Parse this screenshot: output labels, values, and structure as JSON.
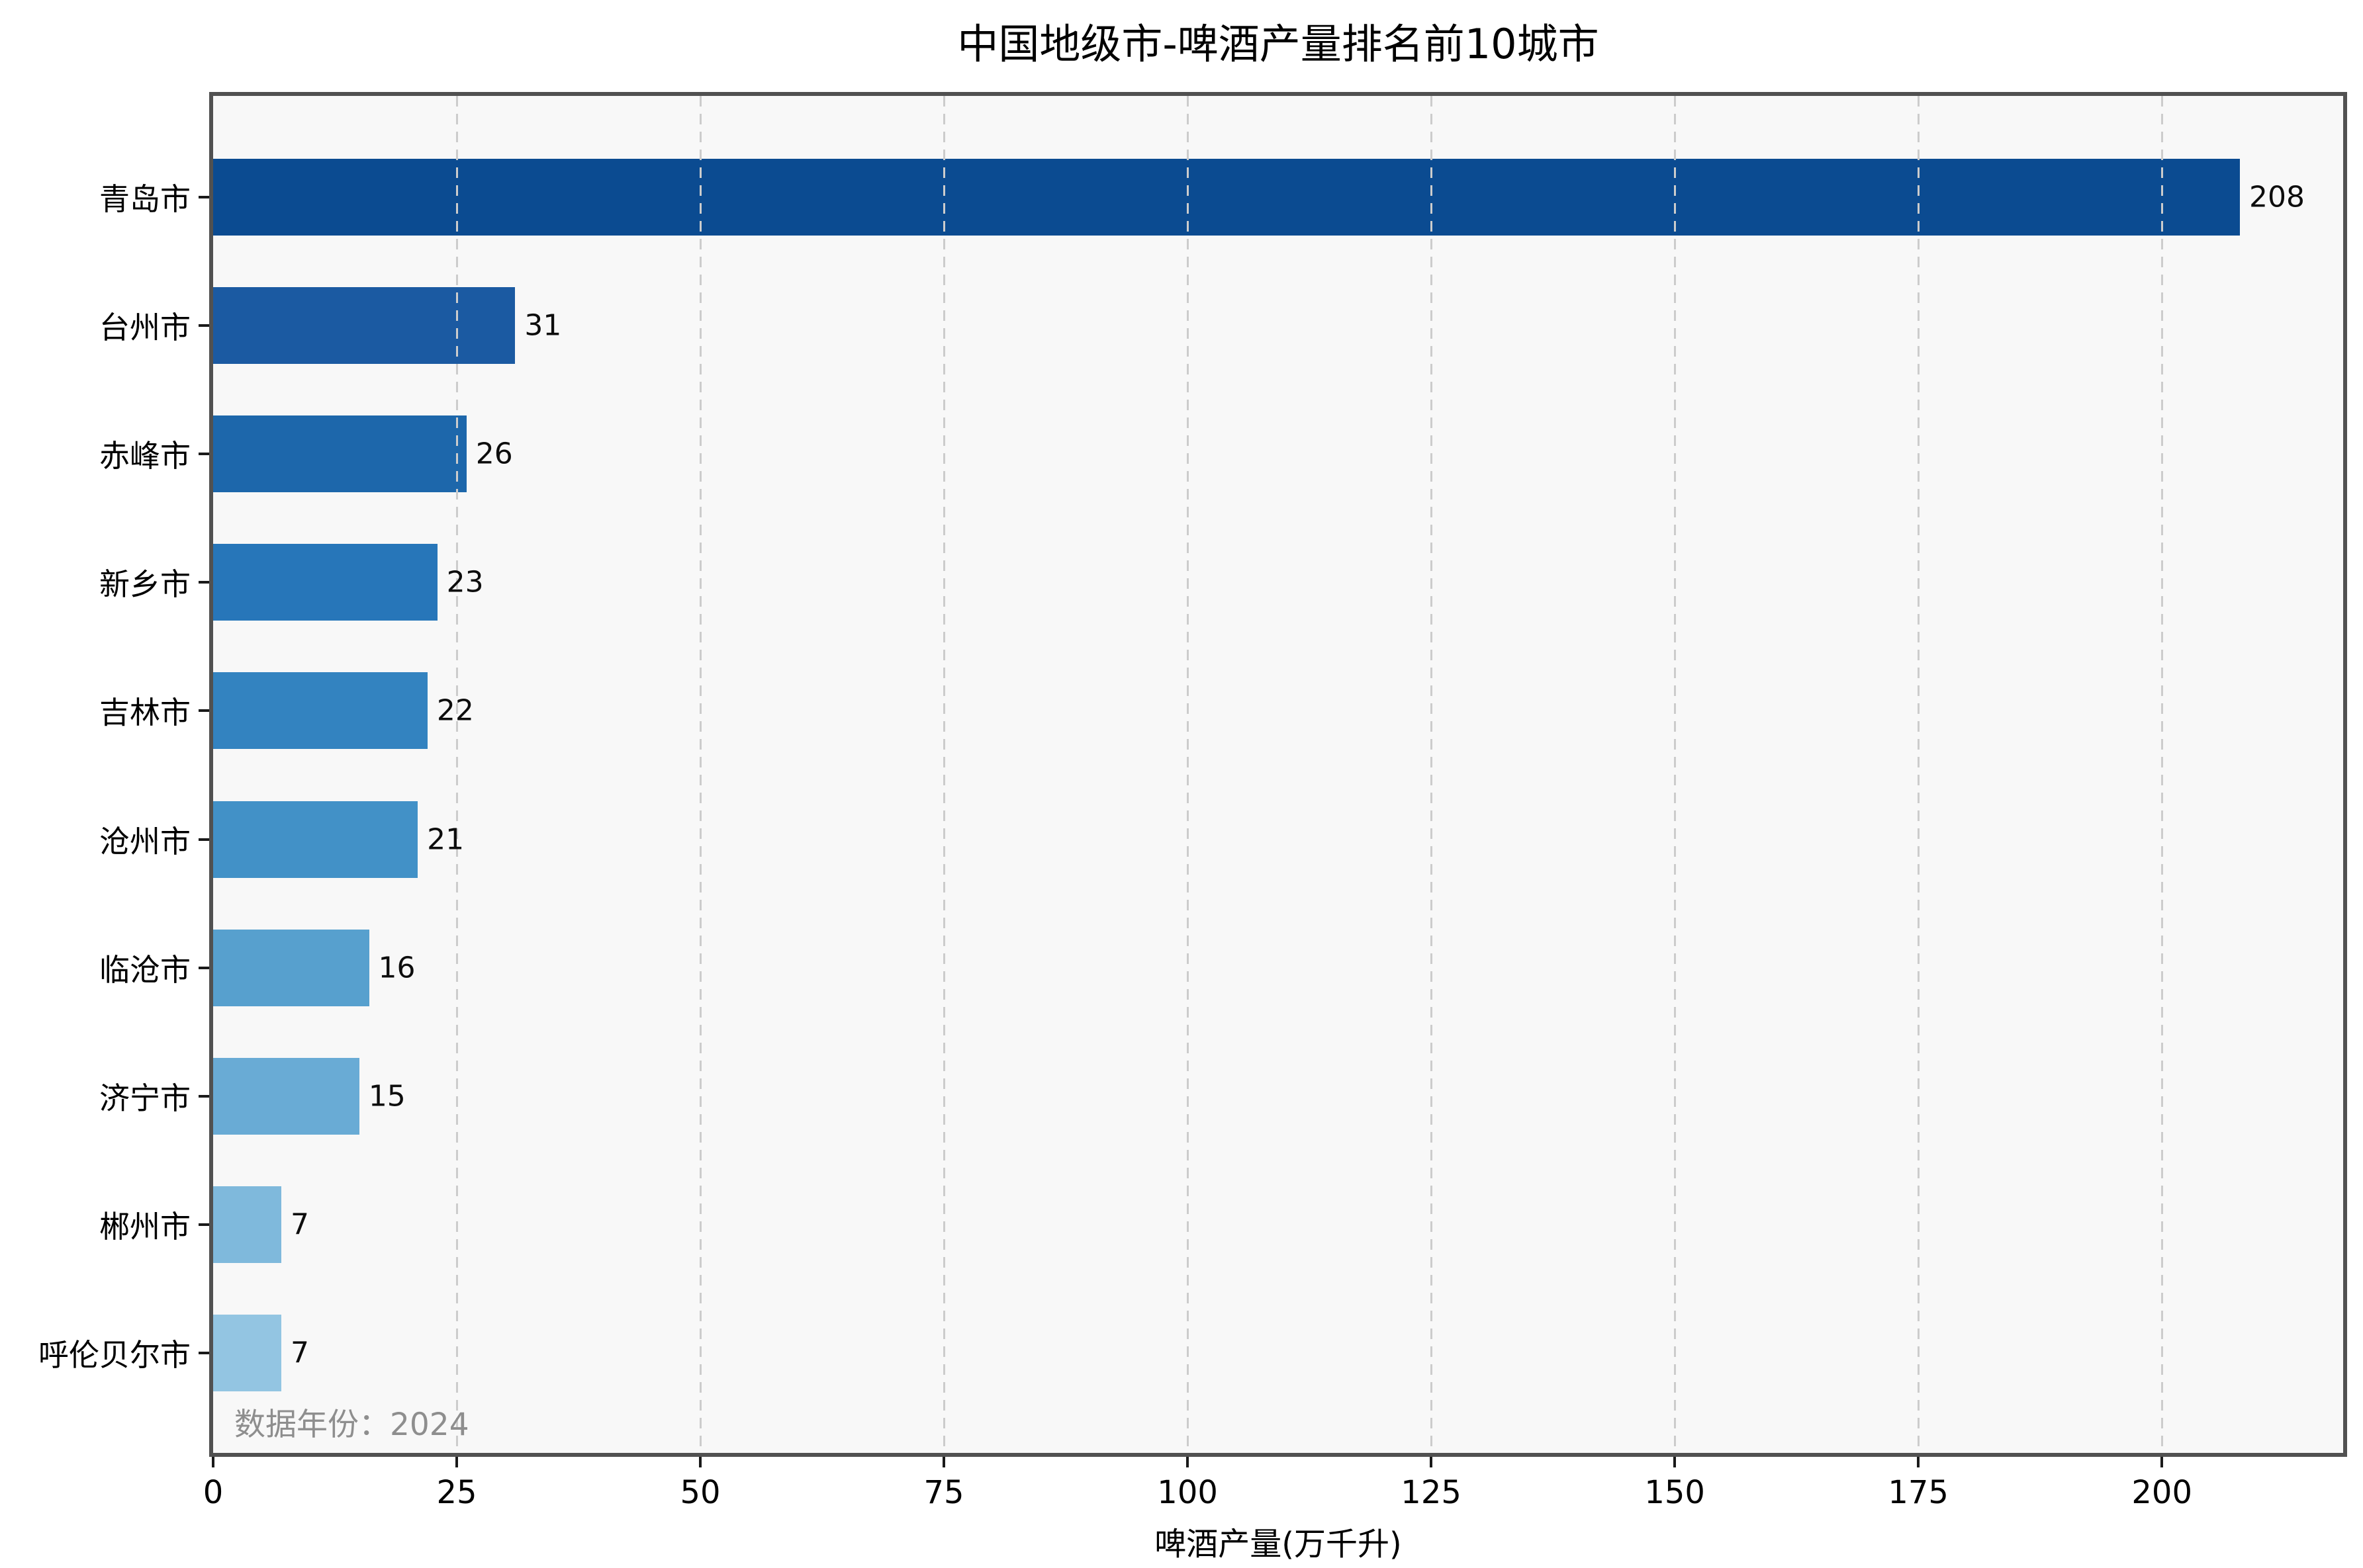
{
  "chart_data": {
    "type": "bar",
    "orientation": "horizontal",
    "title": "中国地级市-啤酒产量排名前10城市",
    "xlabel": "啤酒产量(万千升)",
    "ylabel": "",
    "annotation": "数据年份：2024",
    "categories": [
      "青岛市",
      "台州市",
      "赤峰市",
      "新乡市",
      "吉林市",
      "沧州市",
      "临沧市",
      "济宁市",
      "郴州市",
      "呼伦贝尔市"
    ],
    "values": [
      208,
      31,
      26,
      23,
      22,
      21,
      16,
      15,
      7,
      7
    ],
    "bar_colors": [
      "#0b4b91",
      "#1b5aa2",
      "#1d67ab",
      "#2776b9",
      "#3383c0",
      "#4291c7",
      "#57a0ce",
      "#69abd5",
      "#7fb9dc",
      "#93c5e2"
    ],
    "x_ticks": [
      0,
      25,
      50,
      75,
      100,
      125,
      150,
      175,
      200
    ],
    "xlim": [
      0,
      218.6
    ],
    "grid": "vertical-dashed",
    "legend": "none",
    "data_labels": true
  },
  "colors": {
    "figure_bg": "#ffffff",
    "plot_bg": "#f8f8f8",
    "spine": "#515151",
    "grid": "#cccccc",
    "tick": "#1a1a1a",
    "value_label": "#0d0d0d",
    "note_text": "#8e8e8e"
  }
}
